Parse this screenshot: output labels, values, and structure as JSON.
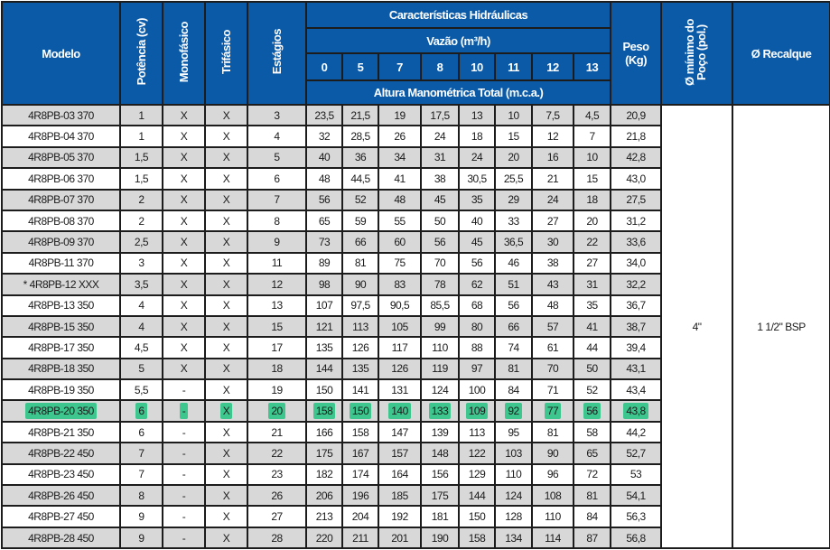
{
  "header": {
    "modelo": "Modelo",
    "potencia": "Potência (cv)",
    "monofasico": "Monofásico",
    "trifasico": "Trifásico",
    "estagios": "Estágios",
    "caracteristicas": "Características Hidráulicas",
    "vazao": "Vazão (m³/h)",
    "flows": [
      "0",
      "5",
      "7",
      "8",
      "10",
      "11",
      "12",
      "13"
    ],
    "altura": "Altura Manométrica Total (m.c.a.)",
    "peso": "Peso (Kg)",
    "poco": "Ø mínimo do Poço (pol.)",
    "recalque": "Ø Recalque"
  },
  "merged": {
    "poco": "4\"",
    "recalque": "1 1/2\" BSP"
  },
  "highlight_color": "#3ec68f",
  "highlighted_row": "4R8PB-20 350",
  "rows": [
    [
      "4R8PB-03 370",
      "1",
      "X",
      "X",
      "3",
      "23,5",
      "21,5",
      "19",
      "17,5",
      "13",
      "10",
      "7,5",
      "4,5",
      "20,9"
    ],
    [
      "4R8PB-04 370",
      "1",
      "X",
      "X",
      "4",
      "32",
      "28,5",
      "26",
      "24",
      "18",
      "15",
      "12",
      "7",
      "21,8"
    ],
    [
      "4R8PB-05 370",
      "1,5",
      "X",
      "X",
      "5",
      "40",
      "36",
      "34",
      "31",
      "24",
      "20",
      "16",
      "10",
      "42,8"
    ],
    [
      "4R8PB-06 370",
      "1,5",
      "X",
      "X",
      "6",
      "48",
      "44,5",
      "41",
      "38",
      "30,5",
      "25,5",
      "21",
      "15",
      "43,0"
    ],
    [
      "4R8PB-07 370",
      "2",
      "X",
      "X",
      "7",
      "56",
      "52",
      "48",
      "45",
      "35",
      "29",
      "24",
      "18",
      "27,5"
    ],
    [
      "4R8PB-08 370",
      "2",
      "X",
      "X",
      "8",
      "65",
      "59",
      "55",
      "50",
      "40",
      "33",
      "27",
      "20",
      "31,2"
    ],
    [
      "4R8PB-09 370",
      "2,5",
      "X",
      "X",
      "9",
      "73",
      "66",
      "60",
      "56",
      "45",
      "36,5",
      "30",
      "22",
      "33,6"
    ],
    [
      "4R8PB-11 370",
      "3",
      "X",
      "X",
      "11",
      "89",
      "81",
      "75",
      "70",
      "56",
      "46",
      "38",
      "27",
      "34,0"
    ],
    [
      "* 4R8PB-12 XXX",
      "3,5",
      "X",
      "X",
      "12",
      "98",
      "90",
      "83",
      "78",
      "62",
      "51",
      "43",
      "31",
      "32,2"
    ],
    [
      "4R8PB-13 350",
      "4",
      "X",
      "X",
      "13",
      "107",
      "97,5",
      "90,5",
      "85,5",
      "68",
      "56",
      "48",
      "35",
      "36,7"
    ],
    [
      "4R8PB-15 350",
      "4",
      "X",
      "X",
      "15",
      "121",
      "113",
      "105",
      "99",
      "80",
      "66",
      "57",
      "41",
      "38,7"
    ],
    [
      "4R8PB-17 350",
      "4,5",
      "X",
      "X",
      "17",
      "135",
      "126",
      "117",
      "110",
      "88",
      "74",
      "61",
      "44",
      "39,4"
    ],
    [
      "4R8PB-18 350",
      "5",
      "X",
      "X",
      "18",
      "144",
      "135",
      "126",
      "119",
      "97",
      "81",
      "70",
      "50",
      "43,1"
    ],
    [
      "4R8PB-19 350",
      "5,5",
      "-",
      "X",
      "19",
      "150",
      "141",
      "131",
      "124",
      "100",
      "84",
      "71",
      "52",
      "43,4"
    ],
    [
      "4R8PB-20 350",
      "6",
      "-",
      "X",
      "20",
      "158",
      "150",
      "140",
      "133",
      "109",
      "92",
      "77",
      "56",
      "43,8"
    ],
    [
      "4R8PB-21 350",
      "6",
      "-",
      "X",
      "21",
      "166",
      "158",
      "147",
      "139",
      "113",
      "95",
      "81",
      "58",
      "44,2"
    ],
    [
      "4R8PB-22 450",
      "7",
      "-",
      "X",
      "22",
      "175",
      "167",
      "157",
      "148",
      "122",
      "103",
      "90",
      "65",
      "52,7"
    ],
    [
      "4R8PB-23 450",
      "7",
      "-",
      "X",
      "23",
      "182",
      "174",
      "164",
      "156",
      "129",
      "110",
      "96",
      "72",
      "53"
    ],
    [
      "4R8PB-26 450",
      "8",
      "-",
      "X",
      "26",
      "206",
      "196",
      "185",
      "175",
      "144",
      "124",
      "108",
      "81",
      "54,1"
    ],
    [
      "4R8PB-27 450",
      "9",
      "-",
      "X",
      "27",
      "213",
      "204",
      "192",
      "181",
      "150",
      "128",
      "110",
      "84",
      "56,3"
    ],
    [
      "4R8PB-28 450",
      "9",
      "-",
      "X",
      "28",
      "220",
      "211",
      "201",
      "190",
      "158",
      "134",
      "114",
      "87",
      "56,8"
    ]
  ]
}
